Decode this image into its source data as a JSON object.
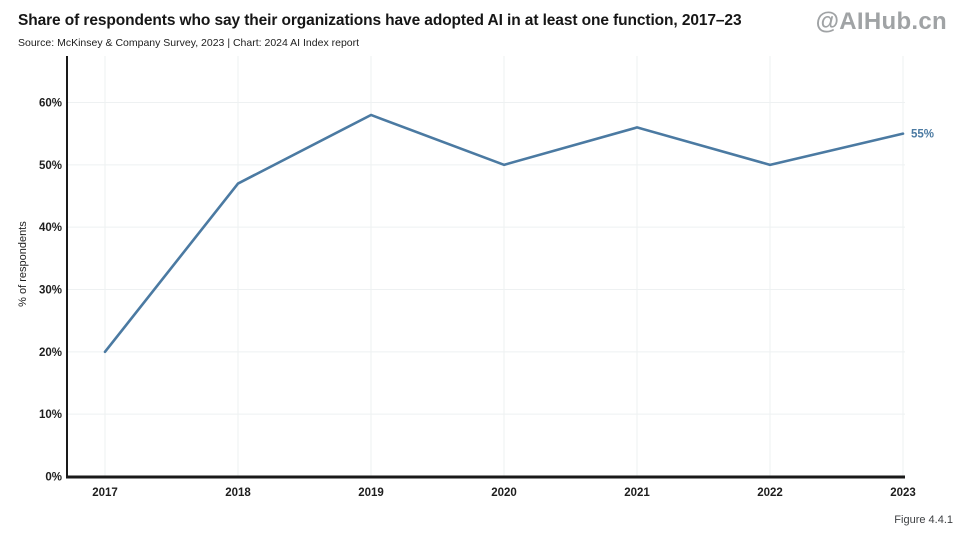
{
  "page": {
    "title": "Share of respondents who say their organizations have adopted AI in at least one function, 2017–23",
    "source_line": "Source: McKinsey & Company Survey, 2023 | Chart: 2024 AI Index report",
    "watermark": "@AIHub.cn",
    "figure_label": "Figure 4.4.1"
  },
  "colors": {
    "line": "#4b7aa2",
    "axis": "#1a1a1a",
    "grid": "#eef1f2",
    "tick_text": "#1e1e1e",
    "watermark": "#969999",
    "figure_label": "#3d3f42"
  },
  "chart_data": {
    "type": "line",
    "title": "Share of respondents who say their organizations have adopted AI in at least one function, 2017–23",
    "categories": [
      "2017",
      "2018",
      "2019",
      "2020",
      "2021",
      "2022",
      "2023"
    ],
    "series": [
      {
        "name": "% of respondents",
        "values": [
          20,
          47,
          58,
          50,
          56,
          50,
          55
        ]
      }
    ],
    "end_label": "55%",
    "xlabel": "",
    "ylabel": "% of respondents",
    "ylim": [
      0,
      60
    ],
    "ytick_step": 10,
    "ytick_suffix": "%",
    "grid": true,
    "legend": "none"
  }
}
